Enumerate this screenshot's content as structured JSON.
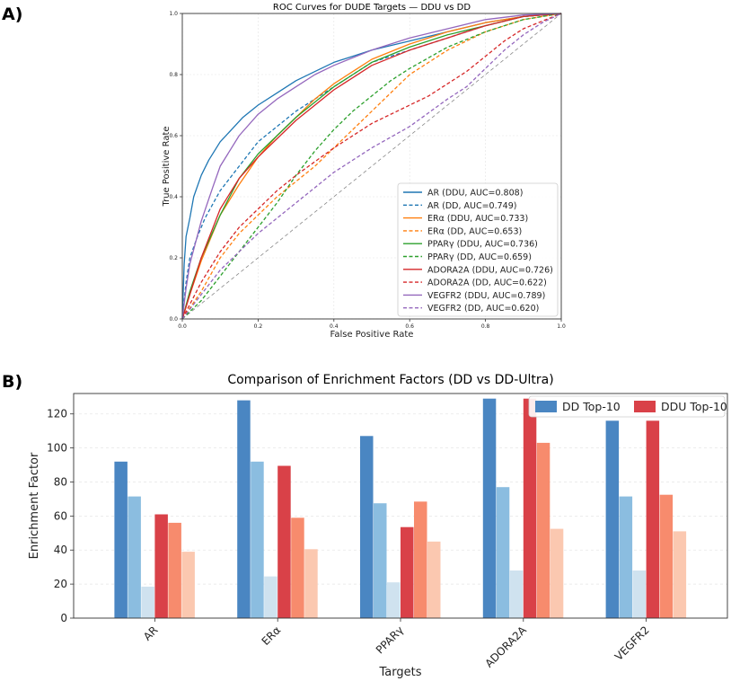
{
  "panel_a": {
    "label": "A)"
  },
  "panel_b": {
    "label": "B)"
  },
  "chart_data": [
    {
      "type": "line",
      "title": "ROC Curves for DUDE Targets — DDU vs DD",
      "xlabel": "False Positive Rate",
      "ylabel": "True Positive Rate",
      "xlim": [
        0,
        1
      ],
      "ylim": [
        0,
        1
      ],
      "xticks": [
        "0.0",
        "0.2",
        "0.4",
        "0.6",
        "0.8",
        "1.0"
      ],
      "yticks": [
        "0.0",
        "0.2",
        "0.4",
        "0.6",
        "0.8",
        "1.0"
      ],
      "grid": true,
      "legend": "lower-right",
      "diagonal": {
        "color": "#888888",
        "style": "dashed"
      },
      "series": [
        {
          "name": "AR (DDU, AUC=0.808)",
          "color": "#1f77b4",
          "dashed": false,
          "x": [
            0,
            0.005,
            0.01,
            0.02,
            0.03,
            0.05,
            0.07,
            0.1,
            0.13,
            0.16,
            0.2,
            0.25,
            0.3,
            0.35,
            0.4,
            0.45,
            0.5,
            0.6,
            0.7,
            0.8,
            0.9,
            1.0
          ],
          "y": [
            0,
            0.18,
            0.27,
            0.33,
            0.4,
            0.47,
            0.52,
            0.58,
            0.62,
            0.66,
            0.7,
            0.74,
            0.78,
            0.81,
            0.84,
            0.86,
            0.88,
            0.91,
            0.94,
            0.97,
            0.99,
            1.0
          ]
        },
        {
          "name": "AR (DD, AUC=0.749)",
          "color": "#1f77b4",
          "dashed": true,
          "x": [
            0,
            0.01,
            0.02,
            0.04,
            0.06,
            0.1,
            0.15,
            0.2,
            0.25,
            0.3,
            0.35,
            0.4,
            0.45,
            0.5,
            0.6,
            0.7,
            0.8,
            0.9,
            1.0
          ],
          "y": [
            0,
            0.12,
            0.2,
            0.27,
            0.33,
            0.42,
            0.5,
            0.58,
            0.63,
            0.68,
            0.72,
            0.76,
            0.8,
            0.84,
            0.88,
            0.92,
            0.96,
            0.99,
            1.0
          ]
        },
        {
          "name": "ERα (DDU, AUC=0.733)",
          "color": "#ff7f0e",
          "dashed": false,
          "x": [
            0,
            0.02,
            0.05,
            0.1,
            0.15,
            0.2,
            0.25,
            0.3,
            0.35,
            0.4,
            0.45,
            0.5,
            0.6,
            0.7,
            0.8,
            0.9,
            1.0
          ],
          "y": [
            0,
            0.08,
            0.19,
            0.34,
            0.44,
            0.53,
            0.6,
            0.66,
            0.72,
            0.77,
            0.81,
            0.85,
            0.9,
            0.94,
            0.97,
            0.99,
            1.0
          ]
        },
        {
          "name": "ERα (DD, AUC=0.653)",
          "color": "#ff7f0e",
          "dashed": true,
          "x": [
            0,
            0.05,
            0.1,
            0.15,
            0.2,
            0.25,
            0.3,
            0.35,
            0.4,
            0.45,
            0.5,
            0.55,
            0.6,
            0.7,
            0.8,
            0.9,
            1.0
          ],
          "y": [
            0,
            0.09,
            0.2,
            0.28,
            0.34,
            0.4,
            0.45,
            0.5,
            0.56,
            0.62,
            0.68,
            0.74,
            0.8,
            0.88,
            0.94,
            0.98,
            1.0
          ]
        },
        {
          "name": "PPARγ (DDU, AUC=0.736)",
          "color": "#2ca02c",
          "dashed": false,
          "x": [
            0,
            0.02,
            0.05,
            0.1,
            0.15,
            0.2,
            0.25,
            0.3,
            0.35,
            0.4,
            0.45,
            0.5,
            0.6,
            0.7,
            0.8,
            0.9,
            1.0
          ],
          "y": [
            0,
            0.09,
            0.2,
            0.34,
            0.46,
            0.54,
            0.6,
            0.66,
            0.71,
            0.76,
            0.8,
            0.84,
            0.89,
            0.93,
            0.96,
            0.99,
            1.0
          ]
        },
        {
          "name": "PPARγ (DD, AUC=0.659)",
          "color": "#2ca02c",
          "dashed": true,
          "x": [
            0,
            0.05,
            0.1,
            0.15,
            0.2,
            0.25,
            0.3,
            0.35,
            0.4,
            0.45,
            0.5,
            0.55,
            0.6,
            0.7,
            0.8,
            0.9,
            1.0
          ],
          "y": [
            0,
            0.06,
            0.14,
            0.22,
            0.3,
            0.38,
            0.47,
            0.55,
            0.62,
            0.68,
            0.73,
            0.78,
            0.82,
            0.89,
            0.94,
            0.98,
            1.0
          ]
        },
        {
          "name": "ADORA2A (DDU, AUC=0.726)",
          "color": "#d62728",
          "dashed": false,
          "x": [
            0,
            0.02,
            0.05,
            0.1,
            0.15,
            0.2,
            0.25,
            0.3,
            0.35,
            0.4,
            0.45,
            0.5,
            0.6,
            0.7,
            0.8,
            0.9,
            1.0
          ],
          "y": [
            0,
            0.08,
            0.2,
            0.36,
            0.46,
            0.53,
            0.59,
            0.65,
            0.7,
            0.75,
            0.79,
            0.83,
            0.88,
            0.92,
            0.96,
            0.99,
            1.0
          ]
        },
        {
          "name": "ADORA2A (DD, AUC=0.622)",
          "color": "#d62728",
          "dashed": true,
          "x": [
            0,
            0.05,
            0.1,
            0.15,
            0.2,
            0.25,
            0.3,
            0.4,
            0.5,
            0.6,
            0.65,
            0.7,
            0.75,
            0.8,
            0.85,
            0.9,
            1.0
          ],
          "y": [
            0,
            0.12,
            0.22,
            0.3,
            0.36,
            0.42,
            0.47,
            0.56,
            0.64,
            0.7,
            0.73,
            0.77,
            0.81,
            0.86,
            0.91,
            0.95,
            1.0
          ]
        },
        {
          "name": "VEGFR2 (DDU, AUC=0.789)",
          "color": "#9467bd",
          "dashed": false,
          "x": [
            0,
            0.01,
            0.02,
            0.05,
            0.08,
            0.1,
            0.15,
            0.2,
            0.25,
            0.3,
            0.35,
            0.4,
            0.5,
            0.6,
            0.7,
            0.8,
            0.9,
            1.0
          ],
          "y": [
            0,
            0.1,
            0.18,
            0.32,
            0.43,
            0.5,
            0.6,
            0.67,
            0.72,
            0.76,
            0.8,
            0.83,
            0.88,
            0.92,
            0.95,
            0.98,
            0.995,
            1.0
          ]
        },
        {
          "name": "VEGFR2 (DD, AUC=0.620)",
          "color": "#9467bd",
          "dashed": true,
          "x": [
            0,
            0.05,
            0.1,
            0.2,
            0.3,
            0.4,
            0.5,
            0.6,
            0.7,
            0.75,
            0.8,
            0.85,
            0.9,
            0.95,
            1.0
          ],
          "y": [
            0,
            0.08,
            0.16,
            0.28,
            0.38,
            0.48,
            0.56,
            0.63,
            0.72,
            0.76,
            0.82,
            0.88,
            0.93,
            0.97,
            1.0
          ]
        }
      ]
    },
    {
      "type": "bar",
      "title": "Comparison of Enrichment Factors (DD vs DD-Ultra)",
      "xlabel": "Targets",
      "ylabel": "Enrichment Factor",
      "ylim": [
        0,
        132
      ],
      "yticks": [
        0,
        20,
        40,
        60,
        80,
        100,
        120
      ],
      "grid": true,
      "legend": "top-right",
      "categories": [
        "AR",
        "ERα",
        "PPARγ",
        "ADORA2A",
        "VEGFR2"
      ],
      "series": [
        {
          "name": "DD Top-10",
          "color": "#4a86c2",
          "values": [
            92,
            128,
            107,
            129,
            116
          ]
        },
        {
          "color": "#8bbde0",
          "values": [
            71.5,
            92,
            67.5,
            77,
            71.5
          ]
        },
        {
          "color": "#cfe2ef",
          "values": [
            18.5,
            24.5,
            21,
            28,
            28
          ]
        },
        {
          "name": "DDU Top-10",
          "color": "#d94148",
          "values": [
            61,
            89.5,
            53.5,
            129,
            116
          ]
        },
        {
          "color": "#f78b6d",
          "values": [
            56,
            59,
            68.5,
            103,
            72.5
          ]
        },
        {
          "color": "#fbc8b0",
          "values": [
            39,
            40.5,
            45,
            52.5,
            51
          ]
        }
      ]
    }
  ]
}
